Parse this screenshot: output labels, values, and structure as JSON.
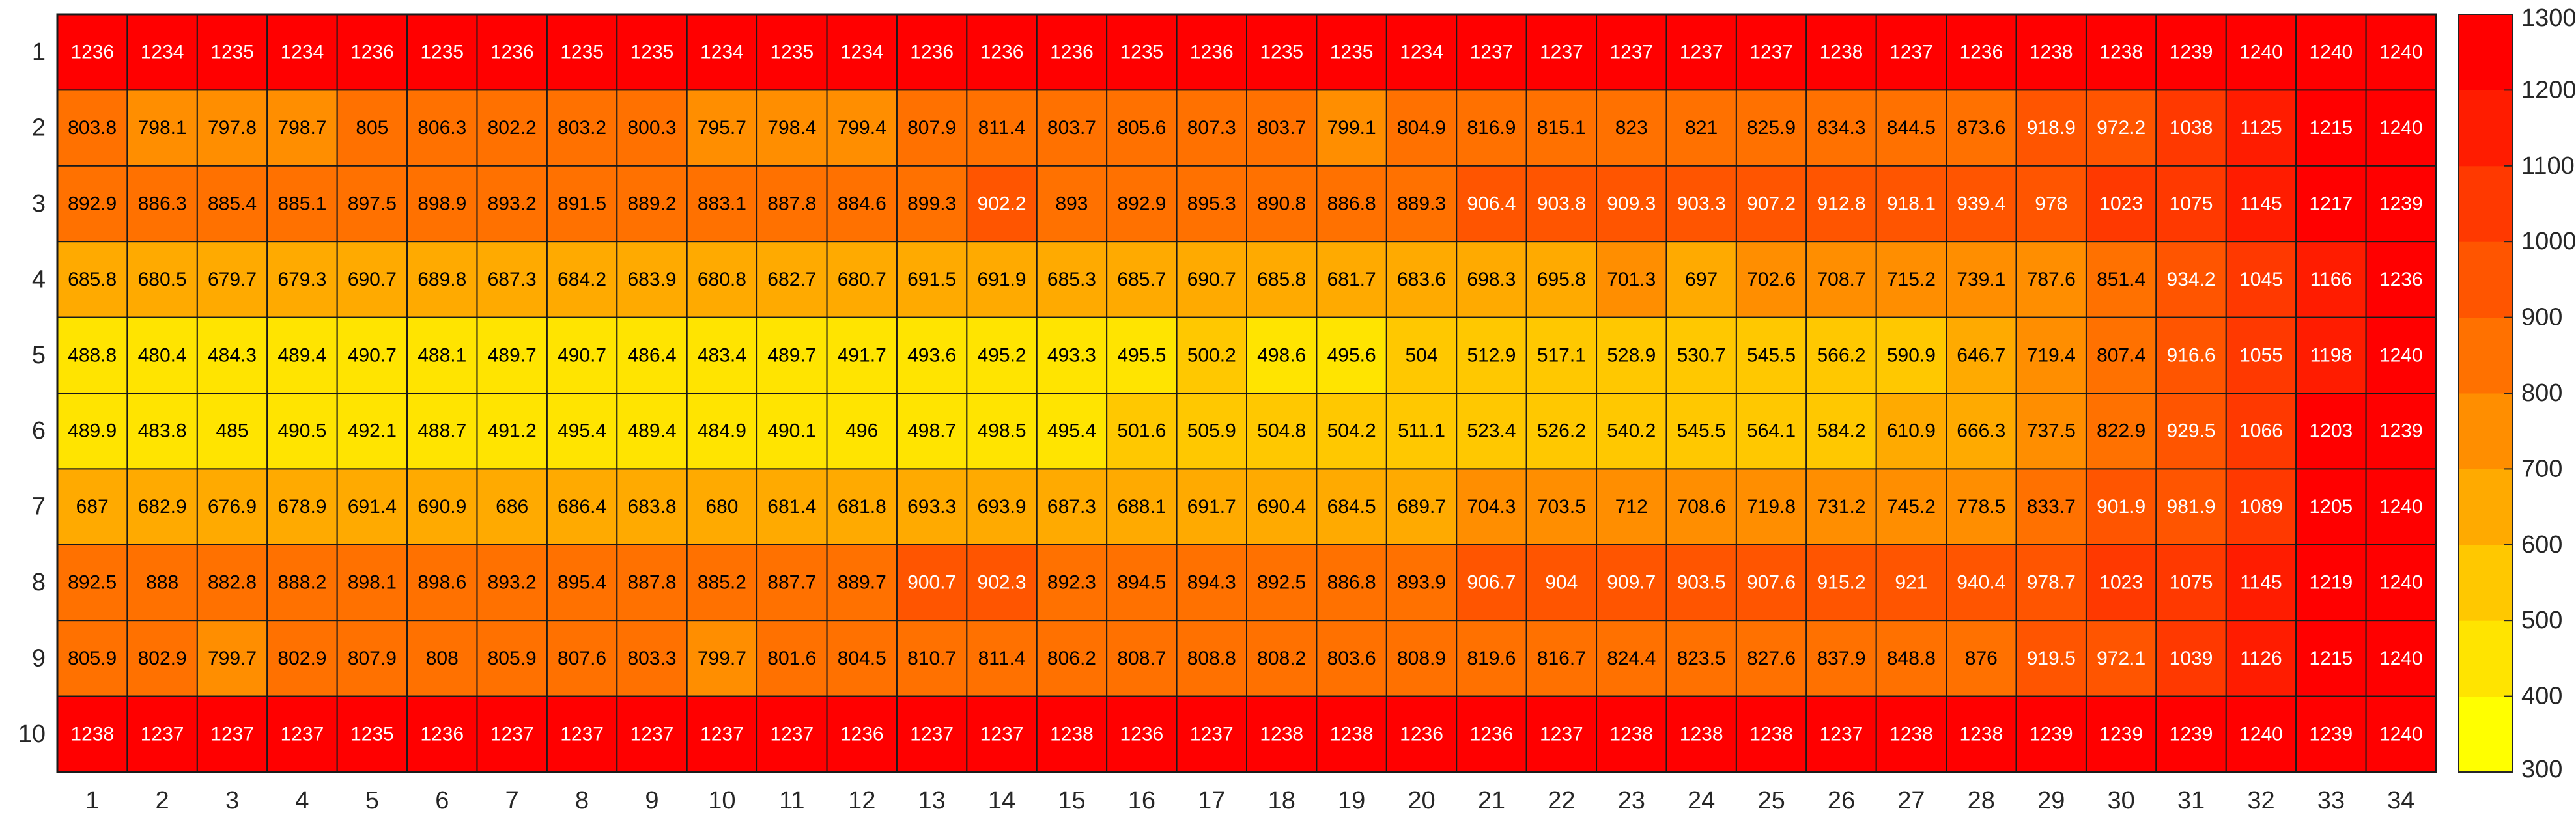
{
  "chart_data": {
    "type": "heatmap",
    "title": "",
    "xlabel": "",
    "ylabel": "",
    "x_labels": [
      "1",
      "2",
      "3",
      "4",
      "5",
      "6",
      "7",
      "8",
      "9",
      "10",
      "11",
      "12",
      "13",
      "14",
      "15",
      "16",
      "17",
      "18",
      "19",
      "20",
      "21",
      "22",
      "23",
      "24",
      "25",
      "26",
      "27",
      "28",
      "29",
      "30",
      "31",
      "32",
      "33",
      "34"
    ],
    "y_labels": [
      "1",
      "2",
      "3",
      "4",
      "5",
      "6",
      "7",
      "8",
      "9",
      "10"
    ],
    "color_range": [
      300,
      1300
    ],
    "colorbar_ticks": [
      "300",
      "400",
      "500",
      "600",
      "700",
      "800",
      "900",
      "1000",
      "1100",
      "1200",
      "1300"
    ],
    "colormap": [
      "#FFFF00",
      "#FFE400",
      "#FFC800",
      "#FFAA00",
      "#FF8E00",
      "#FF7100",
      "#FF5500",
      "#FF3900",
      "#FF1C00",
      "#FF0000"
    ],
    "grid": true,
    "cell_border_color": "#1a1a1a",
    "values": [
      [
        "1236",
        "1234",
        "1235",
        "1234",
        "1236",
        "1235",
        "1236",
        "1235",
        "1235",
        "1234",
        "1235",
        "1234",
        "1236",
        "1236",
        "1236",
        "1235",
        "1236",
        "1235",
        "1235",
        "1234",
        "1237",
        "1237",
        "1237",
        "1237",
        "1237",
        "1238",
        "1237",
        "1236",
        "1238",
        "1238",
        "1239",
        "1240",
        "1240",
        "1240"
      ],
      [
        "803.8",
        "798.1",
        "797.8",
        "798.7",
        "805",
        "806.3",
        "802.2",
        "803.2",
        "800.3",
        "795.7",
        "798.4",
        "799.4",
        "807.9",
        "811.4",
        "803.7",
        "805.6",
        "807.3",
        "803.7",
        "799.1",
        "804.9",
        "816.9",
        "815.1",
        "823",
        "821",
        "825.9",
        "834.3",
        "844.5",
        "873.6",
        "918.9",
        "972.2",
        "1038",
        "1125",
        "1215",
        "1240"
      ],
      [
        "892.9",
        "886.3",
        "885.4",
        "885.1",
        "897.5",
        "898.9",
        "893.2",
        "891.5",
        "889.2",
        "883.1",
        "887.8",
        "884.6",
        "899.3",
        "902.2",
        "893",
        "892.9",
        "895.3",
        "890.8",
        "886.8",
        "889.3",
        "906.4",
        "903.8",
        "909.3",
        "903.3",
        "907.2",
        "912.8",
        "918.1",
        "939.4",
        "978",
        "1023",
        "1075",
        "1145",
        "1217",
        "1239"
      ],
      [
        "685.8",
        "680.5",
        "679.7",
        "679.3",
        "690.7",
        "689.8",
        "687.3",
        "684.2",
        "683.9",
        "680.8",
        "682.7",
        "680.7",
        "691.5",
        "691.9",
        "685.3",
        "685.7",
        "690.7",
        "685.8",
        "681.7",
        "683.6",
        "698.3",
        "695.8",
        "701.3",
        "697",
        "702.6",
        "708.7",
        "715.2",
        "739.1",
        "787.6",
        "851.4",
        "934.2",
        "1045",
        "1166",
        "1236"
      ],
      [
        "488.8",
        "480.4",
        "484.3",
        "489.4",
        "490.7",
        "488.1",
        "489.7",
        "490.7",
        "486.4",
        "483.4",
        "489.7",
        "491.7",
        "493.6",
        "495.2",
        "493.3",
        "495.5",
        "500.2",
        "498.6",
        "495.6",
        "504",
        "512.9",
        "517.1",
        "528.9",
        "530.7",
        "545.5",
        "566.2",
        "590.9",
        "646.7",
        "719.4",
        "807.4",
        "916.6",
        "1055",
        "1198",
        "1240"
      ],
      [
        "489.9",
        "483.8",
        "485",
        "490.5",
        "492.1",
        "488.7",
        "491.2",
        "495.4",
        "489.4",
        "484.9",
        "490.1",
        "496",
        "498.7",
        "498.5",
        "495.4",
        "501.6",
        "505.9",
        "504.8",
        "504.2",
        "511.1",
        "523.4",
        "526.2",
        "540.2",
        "545.5",
        "564.1",
        "584.2",
        "610.9",
        "666.3",
        "737.5",
        "822.9",
        "929.5",
        "1066",
        "1203",
        "1239"
      ],
      [
        "687",
        "682.9",
        "676.9",
        "678.9",
        "691.4",
        "690.9",
        "686",
        "686.4",
        "683.8",
        "680",
        "681.4",
        "681.8",
        "693.3",
        "693.9",
        "687.3",
        "688.1",
        "691.7",
        "690.4",
        "684.5",
        "689.7",
        "704.3",
        "703.5",
        "712",
        "708.6",
        "719.8",
        "731.2",
        "745.2",
        "778.5",
        "833.7",
        "901.9",
        "981.9",
        "1089",
        "1205",
        "1240"
      ],
      [
        "892.5",
        "888",
        "882.8",
        "888.2",
        "898.1",
        "898.6",
        "893.2",
        "895.4",
        "887.8",
        "885.2",
        "887.7",
        "889.7",
        "900.7",
        "902.3",
        "892.3",
        "894.5",
        "894.3",
        "892.5",
        "886.8",
        "893.9",
        "906.7",
        "904",
        "909.7",
        "903.5",
        "907.6",
        "915.2",
        "921",
        "940.4",
        "978.7",
        "1023",
        "1075",
        "1145",
        "1219",
        "1240"
      ],
      [
        "805.9",
        "802.9",
        "799.7",
        "802.9",
        "807.9",
        "808",
        "805.9",
        "807.6",
        "803.3",
        "799.7",
        "801.6",
        "804.5",
        "810.7",
        "811.4",
        "806.2",
        "808.7",
        "808.8",
        "808.2",
        "803.6",
        "808.9",
        "819.6",
        "816.7",
        "824.4",
        "823.5",
        "827.6",
        "837.9",
        "848.8",
        "876",
        "919.5",
        "972.1",
        "1039",
        "1126",
        "1215",
        "1240"
      ],
      [
        "1238",
        "1237",
        "1237",
        "1237",
        "1235",
        "1236",
        "1237",
        "1237",
        "1237",
        "1237",
        "1237",
        "1236",
        "1237",
        "1237",
        "1238",
        "1236",
        "1237",
        "1238",
        "1238",
        "1236",
        "1236",
        "1237",
        "1238",
        "1238",
        "1238",
        "1237",
        "1238",
        "1238",
        "1239",
        "1239",
        "1239",
        "1240",
        "1239",
        "1240"
      ]
    ]
  }
}
